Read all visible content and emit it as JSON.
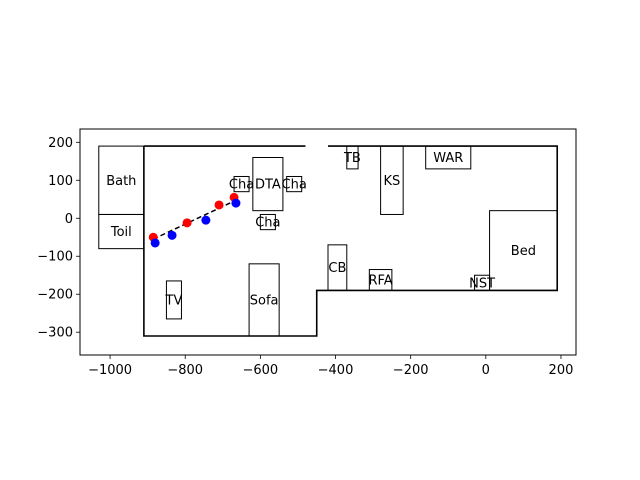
{
  "chart_data": {
    "type": "scatter",
    "title": "",
    "xlabel": "",
    "ylabel": "",
    "xlim": [
      -1080,
      240
    ],
    "ylim": [
      -360,
      235
    ],
    "grid": false,
    "x_ticks": [
      -1000,
      -800,
      -600,
      -400,
      -200,
      0,
      200
    ],
    "y_ticks": [
      200,
      100,
      0,
      -100,
      -200,
      -300
    ],
    "x_tick_labels": [
      "−1000",
      "−800",
      "−600",
      "−400",
      "−200",
      "0",
      "200"
    ],
    "y_tick_labels": [
      "200",
      "100",
      "0",
      "−100",
      "−200",
      "−300"
    ],
    "boundary": {
      "points": [
        [
          -910,
          190
        ],
        [
          190,
          190
        ],
        [
          190,
          -190
        ],
        [
          -450,
          -190
        ],
        [
          -450,
          -310
        ],
        [
          -910,
          -310
        ],
        [
          -910,
          190
        ]
      ],
      "gap": [
        [
          -480,
          190
        ],
        [
          -420,
          190
        ]
      ]
    },
    "furniture": [
      {
        "label": "Bath",
        "x0": -1030,
        "y0": 10,
        "x1": -910,
        "y1": 190
      },
      {
        "label": "Toil",
        "x0": -1030,
        "y0": -80,
        "x1": -910,
        "y1": 10
      },
      {
        "label": "TV",
        "x0": -850,
        "y0": -265,
        "x1": -810,
        "y1": -165
      },
      {
        "label": "Sofa",
        "x0": -630,
        "y0": -310,
        "x1": -550,
        "y1": -120
      },
      {
        "label": "Cha",
        "x0": -670,
        "y0": 70,
        "x1": -630,
        "y1": 110
      },
      {
        "label": "DTA",
        "x0": -620,
        "y0": 20,
        "x1": -540,
        "y1": 160
      },
      {
        "label": "Cha",
        "x0": -530,
        "y0": 70,
        "x1": -490,
        "y1": 110
      },
      {
        "label": "Cha",
        "x0": -600,
        "y0": -30,
        "x1": -560,
        "y1": 10
      },
      {
        "label": "TB",
        "x0": -370,
        "y0": 130,
        "x1": -340,
        "y1": 190
      },
      {
        "label": "KS",
        "x0": -280,
        "y0": 10,
        "x1": -220,
        "y1": 190
      },
      {
        "label": "WAR",
        "x0": -160,
        "y0": 130,
        "x1": -40,
        "y1": 190
      },
      {
        "label": "CB",
        "x0": -420,
        "y0": -190,
        "x1": -370,
        "y1": -70
      },
      {
        "label": "RFA",
        "x0": -310,
        "y0": -190,
        "x1": -250,
        "y1": -135
      },
      {
        "label": "NST",
        "x0": -30,
        "y0": -190,
        "x1": 10,
        "y1": -150
      },
      {
        "label": "Bed",
        "x0": 10,
        "y0": -190,
        "x1": 190,
        "y1": 20
      }
    ],
    "series": [
      {
        "color": "#ff0000",
        "x": [
          -885,
          -795,
          -710,
          -670
        ],
        "y": [
          -50,
          -12,
          35,
          55
        ]
      },
      {
        "color": "#0000ff",
        "x": [
          -880,
          -835,
          -745,
          -665
        ],
        "y": [
          -65,
          -45,
          -5,
          40
        ]
      }
    ],
    "path": {
      "style": "dashed",
      "color": "#000000",
      "x": [
        -885,
        -670
      ],
      "y": [
        -55,
        45
      ]
    }
  }
}
